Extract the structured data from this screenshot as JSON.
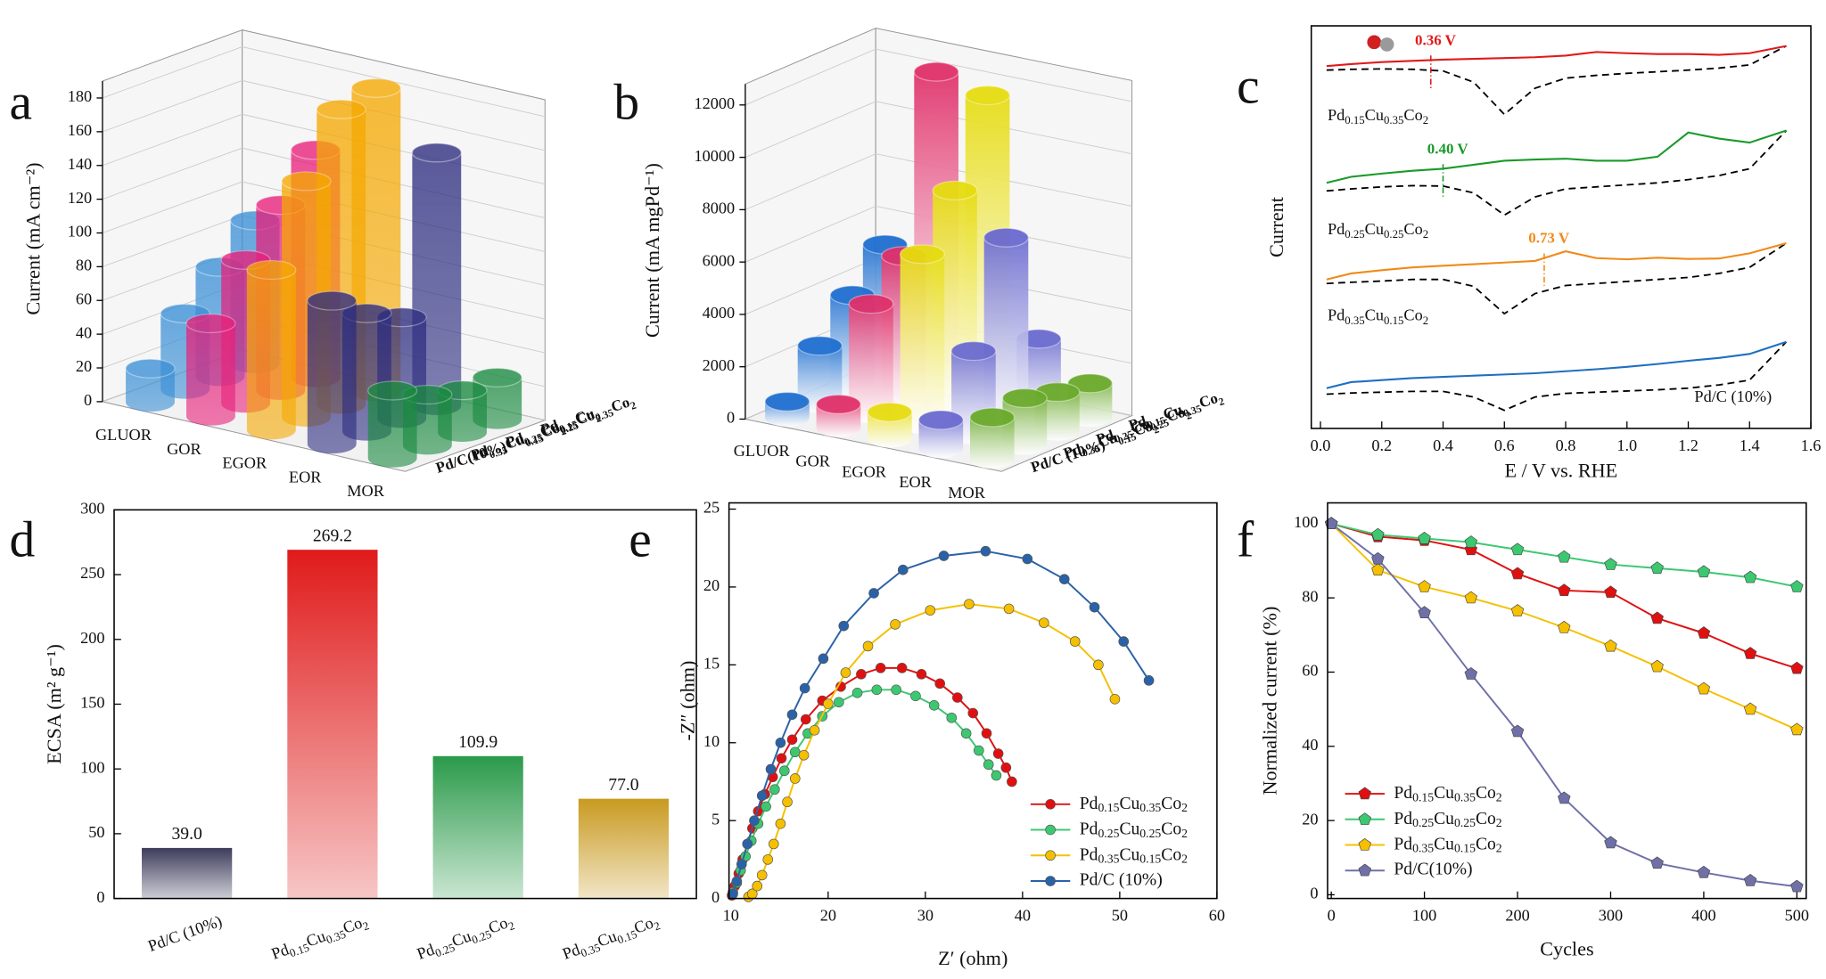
{
  "chart_data": [
    {
      "panel": "a",
      "type": "bar3d",
      "ylabel": "Current (mA cm⁻²)",
      "categories": [
        "GLUOR",
        "GOR",
        "EGOR",
        "EOR",
        "MOR"
      ],
      "colors": [
        "#3a8fd6",
        "#e8207a",
        "#f5a800",
        "#2c2c80",
        "#1a8a40"
      ],
      "series": [
        {
          "name": "Pd0.15Cu0.35Co2",
          "values": [
            85,
            135,
            180,
            150,
            25
          ]
        },
        {
          "name": "Pd0.25Cu0.25Co2",
          "values": [
            65,
            110,
            175,
            60,
            25
          ]
        },
        {
          "name": "Pd0.35Cu0.15Co2",
          "values": [
            45,
            85,
            140,
            70,
            30
          ]
        },
        {
          "name": "Pd/C(10%)",
          "values": [
            20,
            55,
            95,
            85,
            40
          ]
        }
      ],
      "ylim": [
        0,
        190
      ],
      "yticks": [
        0,
        20,
        40,
        60,
        80,
        100,
        120,
        140,
        160,
        180
      ]
    },
    {
      "panel": "b",
      "type": "bar3d",
      "ylabel": "Current (mA mgPd⁻¹)",
      "categories": [
        "GLUOR",
        "GOR",
        "EGOR",
        "EOR",
        "MOR"
      ],
      "colors": [
        "#1f6fd0",
        "#e0306a",
        "#e6dc10",
        "#6a6ad0",
        "#6aaa2a"
      ],
      "series": [
        {
          "name": "Pd0.15Cu0.35Co2",
          "values": [
            5000,
            12000,
            11500,
            2600,
            1300
          ]
        },
        {
          "name": "Pd0.25Cu0.25Co2",
          "values": [
            3600,
            5500,
            8400,
            7000,
            1500
          ]
        },
        {
          "name": "Pd0.35Cu0.15Co2",
          "values": [
            2200,
            4200,
            6500,
            3200,
            1800
          ]
        },
        {
          "name": "Pd/C (10%)",
          "values": [
            600,
            900,
            1000,
            1100,
            1600
          ]
        }
      ],
      "ylim": [
        0,
        12800
      ],
      "yticks": [
        0,
        2000,
        4000,
        6000,
        8000,
        10000,
        12000
      ]
    },
    {
      "panel": "c",
      "type": "line",
      "xlabel": "E / V vs. RHE",
      "ylabel": "Current",
      "x": [
        0.02,
        0.1,
        0.2,
        0.3,
        0.4,
        0.5,
        0.6,
        0.7,
        0.8,
        0.9,
        1.0,
        1.1,
        1.2,
        1.3,
        1.4,
        1.52
      ],
      "series": [
        {
          "name": "Pd0.15Cu0.35Co2",
          "color": "#e01a1a",
          "annotation": {
            "text": "0.36 V",
            "x": 0.36
          },
          "values": [
            90,
            90.5,
            91,
            91.3,
            91.6,
            91.8,
            92,
            92.2,
            92.6,
            93.5,
            93.2,
            93,
            93,
            92.8,
            93.2,
            95
          ],
          "reference_values": [
            89,
            89.2,
            89.3,
            89.2,
            88.8,
            86,
            78,
            84.5,
            87,
            87.7,
            88.2,
            88.6,
            89,
            89.5,
            90.3,
            95
          ]
        },
        {
          "name": "Pd0.25Cu0.25Co2",
          "color": "#1a9a2a",
          "annotation": {
            "text": "0.40 V",
            "x": 0.4
          },
          "values": [
            61,
            62.5,
            63.3,
            64,
            64.5,
            65.5,
            66.5,
            66.8,
            67,
            66.5,
            66.5,
            67.5,
            73.5,
            72,
            71,
            74
          ],
          "reference_values": [
            59,
            59.5,
            60,
            60.3,
            60.2,
            58.5,
            53,
            57.5,
            59.5,
            60,
            60.5,
            61,
            61.8,
            62.8,
            64.5,
            74
          ]
        },
        {
          "name": "Pd0.35Cu0.15Co2",
          "color": "#f08a1a",
          "annotation": {
            "text": "0.73 V",
            "x": 0.73
          },
          "values": [
            37,
            38.5,
            39.3,
            40,
            40.4,
            40.8,
            41.2,
            41.6,
            44,
            42.3,
            42,
            42.4,
            42.1,
            42.2,
            43.5,
            46
          ],
          "reference_values": [
            36,
            36.3,
            36.6,
            37,
            37,
            35.3,
            28.5,
            33.5,
            35.5,
            36,
            36.5,
            37,
            37.5,
            38.5,
            40,
            46
          ]
        },
        {
          "name": "Pd/C (10%)",
          "color": "#1f6fc0",
          "values": [
            10,
            11.5,
            12,
            12.5,
            12.8,
            13.1,
            13.4,
            13.7,
            14.2,
            14.7,
            15.3,
            16,
            16.8,
            17.5,
            18.5,
            21.5
          ],
          "reference_values": [
            8.5,
            8.8,
            9,
            9.2,
            9.2,
            7.8,
            4.5,
            7.8,
            8.7,
            9,
            9.3,
            9.6,
            10,
            10.8,
            12,
            21.5
          ]
        }
      ],
      "xlim": [
        -0.03,
        1.6
      ],
      "xticks": [
        {
          "value": 0,
          "label": "0.0"
        },
        0.2,
        0.4,
        0.6,
        0.8,
        {
          "value": 1,
          "label": "1.0"
        },
        1.2,
        1.4,
        1.6
      ],
      "ylim": [
        0,
        100
      ]
    },
    {
      "panel": "d",
      "type": "bar",
      "ylabel": "ECSA (m² g⁻¹)",
      "categories": [
        "Pd/C (10%)",
        "Pd0.15Cu0.35Co2",
        "Pd0.25Cu0.25Co2",
        "Pd0.35Cu0.15Co2"
      ],
      "values": [
        39.0,
        269.2,
        109.9,
        77.0
      ],
      "value_labels": [
        "39.0",
        "269.2",
        "109.9",
        "77.0"
      ],
      "colors": [
        "#3c3c5c",
        "#e01a1a",
        "#2a9a4a",
        "#c99a20"
      ],
      "ylim": [
        0,
        300
      ],
      "yticks": [
        0,
        50,
        100,
        150,
        200,
        250,
        300
      ]
    },
    {
      "panel": "e",
      "type": "line",
      "xlabel": "Z′ (ohm)",
      "ylabel": "-Z″ (ohm)",
      "marker": "circle",
      "legend": "lower right",
      "series": [
        {
          "name": "Pd0.15Cu0.35Co2",
          "color": "#e01010",
          "x": [
            10.1,
            10.4,
            10.8,
            11.2,
            11.7,
            12.2,
            12.8,
            13.5,
            14.3,
            15.2,
            16.3,
            17.7,
            19.4,
            21.3,
            23.4,
            25.4,
            27.6,
            29.6,
            31.5,
            33.3,
            34.9,
            36.3,
            37.5,
            38.3,
            38.9
          ],
          "values": [
            0.2,
            0.8,
            1.6,
            2.5,
            3.5,
            4.5,
            5.6,
            6.7,
            7.8,
            9,
            10.2,
            11.5,
            12.7,
            13.6,
            14.4,
            14.8,
            14.8,
            14.4,
            13.8,
            12.9,
            11.9,
            10.6,
            9.3,
            8.4,
            7.5
          ]
        },
        {
          "name": "Pd0.25Cu0.25Co2",
          "color": "#3cc870",
          "x": [
            10.2,
            10.6,
            11,
            11.5,
            12.1,
            12.8,
            13.6,
            14.5,
            15.5,
            16.6,
            17.9,
            19.4,
            21.1,
            23,
            25,
            27,
            29,
            30.9,
            32.7,
            34.2,
            35.5,
            36.5,
            37.3
          ],
          "values": [
            0.4,
            1,
            1.8,
            2.7,
            3.7,
            4.8,
            5.9,
            7,
            8.2,
            9.4,
            10.6,
            11.7,
            12.6,
            13.2,
            13.4,
            13.4,
            13,
            12.4,
            11.6,
            10.6,
            9.5,
            8.6,
            7.9
          ]
        },
        {
          "name": "Pd0.35Cu0.15Co2",
          "color": "#f5c000",
          "x": [
            11.8,
            12.2,
            12.7,
            13.2,
            13.8,
            14.4,
            15.1,
            15.8,
            16.6,
            17.5,
            18.6,
            20,
            21.8,
            24.1,
            26.9,
            30.5,
            34.5,
            38.6,
            42.2,
            45.4,
            47.8,
            49.5
          ],
          "values": [
            0.1,
            0.3,
            0.8,
            1.5,
            2.5,
            3.5,
            4.8,
            6.2,
            7.7,
            9.2,
            10.8,
            12.5,
            14.5,
            16.2,
            17.6,
            18.5,
            18.9,
            18.6,
            17.7,
            16.5,
            15,
            12.8
          ]
        },
        {
          "name": "Pd/C (10%)",
          "color": "#2a62a8",
          "x": [
            10.2,
            10.6,
            11.1,
            11.7,
            12.4,
            13.2,
            14.1,
            15.1,
            16.3,
            17.6,
            19.5,
            21.6,
            24.7,
            27.7,
            31.9,
            36.2,
            40.5,
            44.3,
            47.4,
            50.4,
            53.0
          ],
          "values": [
            0.3,
            1.1,
            2.2,
            3.5,
            5,
            6.6,
            8.3,
            10,
            11.8,
            13.5,
            15.4,
            17.5,
            19.6,
            21.1,
            22,
            22.3,
            21.8,
            20.5,
            18.7,
            16.5,
            14
          ]
        }
      ],
      "xlim": [
        9.8,
        60
      ],
      "xticks": [
        10,
        20,
        30,
        40,
        50,
        60
      ],
      "ylim": [
        0,
        25.4
      ],
      "yticks": [
        0,
        5,
        10,
        15,
        20,
        25
      ]
    },
    {
      "panel": "f",
      "type": "line",
      "xlabel": "Cycles",
      "ylabel": "Normalized current (%)",
      "marker": "pentagon",
      "legend": "lower left",
      "x": [
        0,
        50,
        100,
        150,
        200,
        250,
        300,
        350,
        400,
        450,
        500
      ],
      "series": [
        {
          "name": "Pd0.15Cu0.35Co2",
          "color": "#e01010",
          "values": [
            100,
            96.5,
            95.5,
            93,
            86.5,
            82,
            81.5,
            74.5,
            70.5,
            65,
            61
          ]
        },
        {
          "name": "Pd0.25Cu0.25Co2",
          "color": "#3cc870",
          "values": [
            100,
            97,
            96,
            95,
            93,
            91,
            89,
            88,
            87,
            85.5,
            83
          ]
        },
        {
          "name": "Pd0.35Cu0.15Co2",
          "color": "#f5c000",
          "values": [
            100,
            87.5,
            83,
            80,
            76.5,
            72,
            67,
            61.5,
            55.5,
            50,
            44.5
          ]
        },
        {
          "name": "Pd/C(10%)",
          "color": "#7070a8",
          "values": [
            100,
            90.5,
            76,
            59.5,
            44,
            26,
            14,
            8.5,
            6,
            3.8,
            2.2
          ]
        }
      ],
      "xlim": [
        -4,
        510
      ],
      "xticks": [
        0,
        100,
        200,
        300,
        400,
        500
      ],
      "ylim": [
        -1,
        105.6
      ],
      "yticks": [
        0,
        20,
        40,
        60,
        80,
        100
      ]
    }
  ]
}
